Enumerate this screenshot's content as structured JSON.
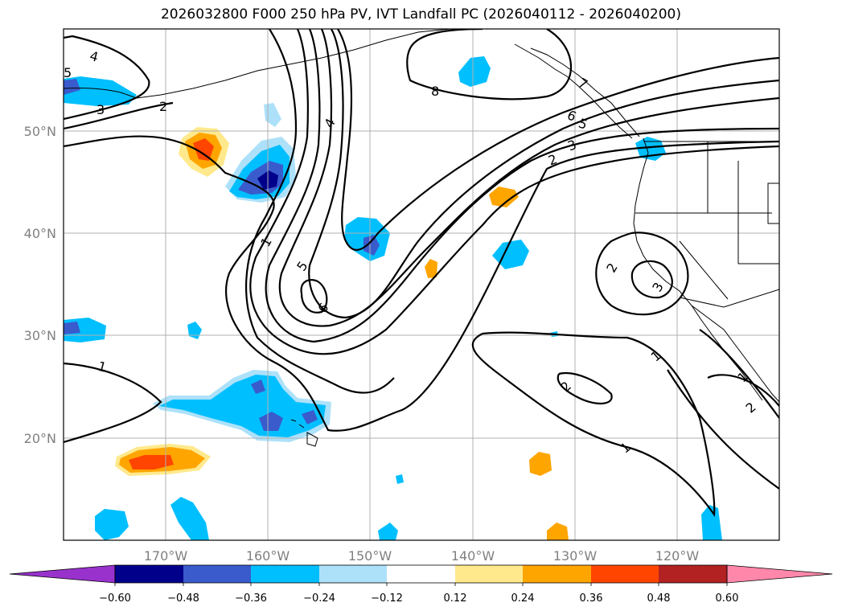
{
  "title": "2026032800 F000 250 hPa PV, IVT Landfall PC (2026040112 - 2026040200)",
  "map": {
    "lon_range": [
      -180,
      -110
    ],
    "lat_range": [
      10,
      60
    ],
    "lon_ticks": [
      {
        "value": -170,
        "label": "170°W"
      },
      {
        "value": -160,
        "label": "160°W"
      },
      {
        "value": -150,
        "label": "150°W"
      },
      {
        "value": -140,
        "label": "140°W"
      },
      {
        "value": -130,
        "label": "130°W"
      },
      {
        "value": -120,
        "label": "120°W"
      }
    ],
    "lat_ticks": [
      {
        "value": 50,
        "label": "50°N"
      },
      {
        "value": 40,
        "label": "40°N"
      },
      {
        "value": 30,
        "label": "30°N"
      },
      {
        "value": 20,
        "label": "20°N"
      }
    ],
    "grid": true,
    "contour_labels": [
      "4",
      "5",
      "3",
      "2",
      "4",
      "1",
      "5",
      "6",
      "8",
      "7",
      "6",
      "5",
      "3",
      "2",
      "2",
      "3",
      "1",
      "1",
      "2",
      "1",
      "1",
      "2"
    ]
  },
  "colorbar": {
    "ticks": [
      "−0.60",
      "−0.48",
      "−0.36",
      "−0.24",
      "−0.12",
      "0.12",
      "0.24",
      "0.36",
      "0.48",
      "0.60"
    ],
    "colors": [
      "#9932CC",
      "#00008B",
      "#3A5BCB",
      "#00BFFF",
      "#ADE1FA",
      "#FFFFFF",
      "#FFE98C",
      "#FFA500",
      "#FF4500",
      "#B22222",
      "#FF88AA"
    ]
  }
}
